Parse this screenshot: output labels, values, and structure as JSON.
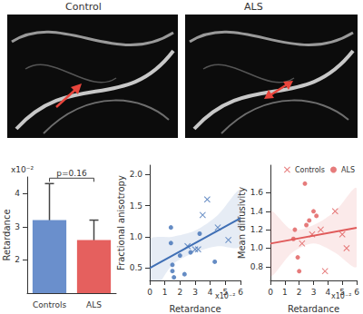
{
  "images": [
    {
      "title": "Control"
    },
    {
      "title": "ALS"
    }
  ],
  "chart_data": [
    {
      "type": "bar",
      "categories": [
        "Controls",
        "ALS"
      ],
      "values": [
        3.2,
        2.6
      ],
      "colors": [
        "#6a8fcc",
        "#e5605e"
      ],
      "error_low": [
        2.1,
        2.1
      ],
      "error_high": [
        4.3,
        3.2
      ],
      "ylabel": "Retardance",
      "y_scale_label": "x10⁻²",
      "annotation": "p=0.16",
      "ylim": [
        1,
        4.5
      ],
      "yticks": [
        2,
        3,
        4
      ],
      "grid": false
    },
    {
      "type": "scatter",
      "xlabel": "Retardance",
      "ylabel": "Fractional anisotropy",
      "x_scale_label": "x10⁻²",
      "xlim": [
        0,
        6
      ],
      "xticks": [
        0,
        1,
        2,
        3,
        4,
        5,
        6
      ],
      "ylim": [
        0.3,
        2.15
      ],
      "yticks": [
        0.5,
        {
          "value": 1,
          "label": "1.0"
        },
        1.5,
        {
          "value": 2,
          "label": "2.0"
        }
      ],
      "grid": false,
      "series": [
        {
          "name": "Controls",
          "marker": "x",
          "color": "#3f6fb5",
          "x": [
            2.5,
            3.0,
            3.2,
            3.5,
            3.8,
            4.5,
            5.2
          ],
          "values": [
            0.85,
            0.8,
            0.8,
            1.35,
            1.6,
            1.15,
            0.95
          ]
        },
        {
          "name": "ALS",
          "marker": "circle",
          "color": "#3f6fb5",
          "x": [
            1.4,
            1.4,
            1.5,
            1.5,
            1.6,
            2.0,
            2.3,
            2.7,
            3.3,
            4.3
          ],
          "values": [
            1.15,
            0.9,
            0.55,
            0.45,
            0.35,
            0.7,
            0.4,
            0.75,
            1.05,
            0.6
          ]
        }
      ],
      "fit": {
        "x": [
          0,
          6
        ],
        "values": [
          0.5,
          1.3
        ],
        "color": "#3f6fb5"
      },
      "ci": {
        "x": [
          0,
          1.5,
          3,
          4.5,
          6
        ],
        "low": [
          0.05,
          0.55,
          0.75,
          0.85,
          0.85
        ],
        "high": [
          0.95,
          1.0,
          1.1,
          1.35,
          1.75
        ]
      }
    },
    {
      "type": "scatter",
      "xlabel": "Retardance",
      "ylabel": "Mean diffusivity",
      "x_scale_label": "x10⁻²",
      "xlim": [
        0,
        6
      ],
      "xticks": [
        0,
        1,
        2,
        3,
        4,
        5,
        6
      ],
      "ylim": [
        0.65,
        1.9
      ],
      "yticks": [
        0.8,
        {
          "value": 1,
          "label": "1.0"
        },
        1.2,
        1.4,
        1.6
      ],
      "grid": false,
      "legend": "upper right",
      "series": [
        {
          "name": "Controls",
          "marker": "x",
          "color": "#e05a5a",
          "x": [
            2.2,
            2.9,
            3.5,
            3.8,
            4.5,
            5.0,
            5.3
          ],
          "values": [
            1.05,
            1.15,
            1.2,
            0.75,
            1.4,
            1.15,
            1.0
          ]
        },
        {
          "name": "ALS",
          "marker": "circle",
          "color": "#e05a5a",
          "x": [
            1.6,
            1.7,
            1.9,
            2.0,
            2.4,
            2.5,
            2.7,
            3.0,
            3.2
          ],
          "values": [
            1.1,
            1.2,
            0.9,
            0.75,
            1.7,
            1.25,
            1.3,
            1.4,
            1.35
          ]
        }
      ],
      "fit": {
        "x": [
          0,
          6
        ],
        "values": [
          1.05,
          1.22
        ],
        "color": "#e05a5a"
      },
      "ci": {
        "x": [
          0,
          1.5,
          3,
          4.5,
          6
        ],
        "low": [
          0.7,
          0.95,
          1.05,
          0.95,
          0.8
        ],
        "high": [
          1.4,
          1.2,
          1.25,
          1.4,
          1.65
        ]
      }
    }
  ]
}
